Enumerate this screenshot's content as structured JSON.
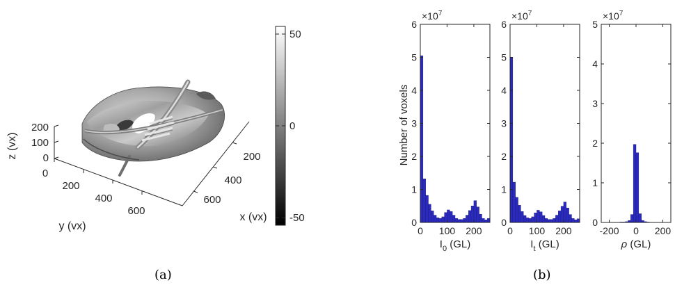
{
  "panel_a": {
    "caption": "(a)",
    "x_label": "x (vx)",
    "y_label": "y (vx)",
    "z_label": "z (vx)",
    "x_ticks": [
      "200",
      "400",
      "600"
    ],
    "y_ticks": [
      "0",
      "200",
      "400",
      "600"
    ],
    "z_ticks": [
      "0",
      "100",
      "200"
    ],
    "colorbar_ticks": [
      "50",
      "0",
      "-50"
    ],
    "colorbar_range": [
      -55,
      55
    ]
  },
  "panel_b": {
    "caption": "(b)",
    "ylabel": "Number of voxels"
  },
  "chart_data": [
    {
      "type": "bar",
      "xlabel_main": "I",
      "xlabel_sub": "0",
      "xlabel_rest": " (GL)",
      "ylabel": "Number of voxels",
      "exponent": "×10",
      "exponent_power": "7",
      "xlim": [
        0,
        260
      ],
      "ylim": [
        0,
        6
      ],
      "x_ticks": [
        0,
        100,
        200
      ],
      "y_ticks": [
        0,
        1,
        2,
        3,
        4,
        5,
        6
      ],
      "bin_width": 10,
      "bin_starts": [
        0,
        10,
        20,
        30,
        40,
        50,
        60,
        70,
        80,
        90,
        100,
        110,
        120,
        130,
        140,
        150,
        160,
        170,
        180,
        190,
        200,
        210,
        220,
        230,
        240,
        250
      ],
      "values": [
        5.05,
        1.32,
        0.82,
        0.55,
        0.35,
        0.22,
        0.14,
        0.12,
        0.17,
        0.3,
        0.38,
        0.33,
        0.22,
        0.12,
        0.09,
        0.09,
        0.12,
        0.22,
        0.36,
        0.5,
        0.66,
        0.47,
        0.25,
        0.12,
        0.08,
        0.12
      ],
      "color": "#2B2ABF"
    },
    {
      "type": "bar",
      "xlabel_main": "I",
      "xlabel_sub": "t",
      "xlabel_rest": " (GL)",
      "exponent": "×10",
      "exponent_power": "7",
      "xlim": [
        0,
        260
      ],
      "ylim": [
        0,
        6
      ],
      "x_ticks": [
        0,
        100,
        200
      ],
      "y_ticks": [
        0,
        1,
        2,
        3,
        4,
        5,
        6
      ],
      "bin_width": 10,
      "bin_starts": [
        0,
        10,
        20,
        30,
        40,
        50,
        60,
        70,
        80,
        90,
        100,
        110,
        120,
        130,
        140,
        150,
        160,
        170,
        180,
        190,
        200,
        210,
        220,
        230,
        240,
        250
      ],
      "values": [
        5.0,
        1.22,
        0.76,
        0.52,
        0.33,
        0.21,
        0.14,
        0.12,
        0.17,
        0.29,
        0.37,
        0.32,
        0.21,
        0.12,
        0.09,
        0.09,
        0.12,
        0.22,
        0.35,
        0.49,
        0.62,
        0.44,
        0.24,
        0.12,
        0.08,
        0.11
      ],
      "color": "#2B2ABF"
    },
    {
      "type": "bar",
      "xlabel_main": "ρ",
      "xlabel_sub": "",
      "xlabel_rest": " (GL)",
      "exponent": "×10",
      "exponent_power": "7",
      "xlim": [
        -260,
        260
      ],
      "ylim": [
        0,
        5
      ],
      "x_ticks": [
        -200,
        0,
        200
      ],
      "y_ticks": [
        0,
        1,
        2,
        3,
        4,
        5
      ],
      "bin_width": 20,
      "bin_starts": [
        -180,
        -160,
        -140,
        -120,
        -100,
        -80,
        -60,
        -40,
        -20,
        0,
        20,
        40,
        60,
        80,
        100
      ],
      "values": [
        0.005,
        0.005,
        0.005,
        0.01,
        0.01,
        0.02,
        0.05,
        0.2,
        1.97,
        1.76,
        0.22,
        0.05,
        0.02,
        0.01,
        0.005
      ],
      "color": "#2B2ABF"
    }
  ]
}
